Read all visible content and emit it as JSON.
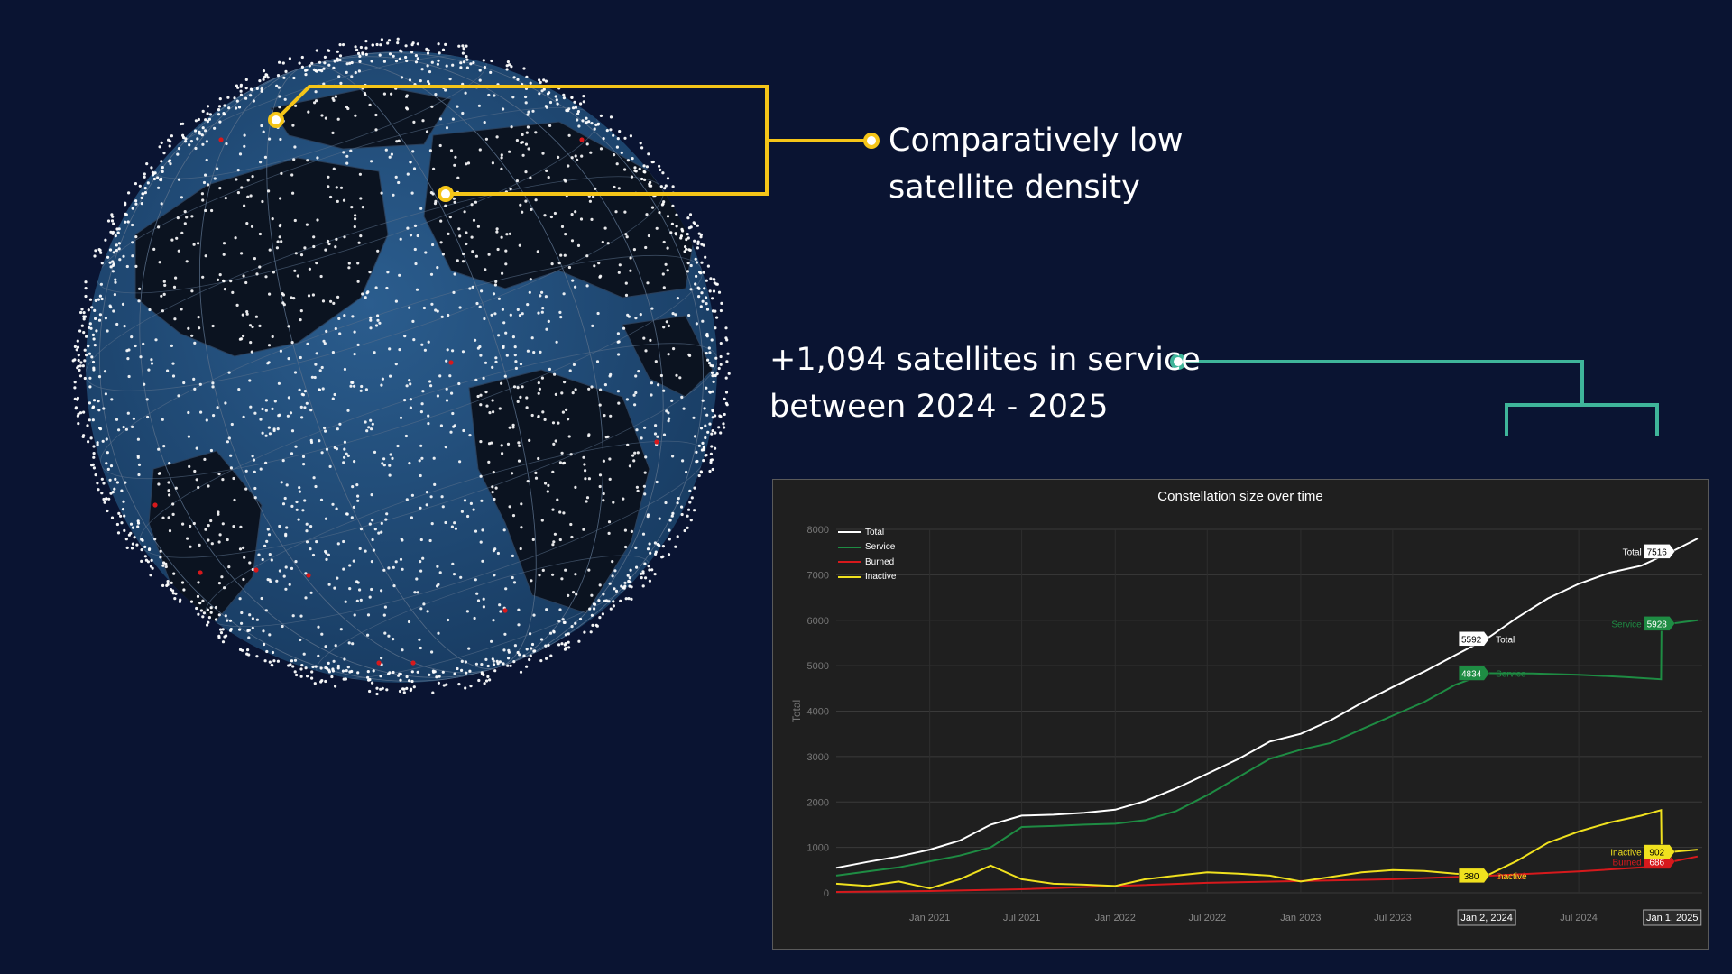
{
  "callouts": {
    "density": {
      "line1": "Comparatively low",
      "line2": "satellite density"
    },
    "service": {
      "line1": "+1,094 satellites in service",
      "line2": "between 2024 - 2025"
    }
  },
  "colors": {
    "background": "#0a1432",
    "callout_yellow": "#f5c518",
    "callout_teal": "#3fb59a",
    "ocean": "#1f4a75",
    "land": "#0b1320",
    "satellite": "#ffffff",
    "total": "#ffffff",
    "service": "#1e8c43",
    "burned": "#d7191c",
    "inactive": "#f0e11e"
  },
  "globe": {
    "icon": "earth-globe-icon",
    "satellite_icon": "satellite-dot-icon"
  },
  "chart_data": {
    "type": "line",
    "title": "Constellation size over time",
    "ylabel": "Total",
    "xlabel": "",
    "ylim": [
      0,
      8000
    ],
    "xlim": [
      "2020-07-01",
      "2025-03-01"
    ],
    "yticks": [
      0,
      1000,
      2000,
      3000,
      4000,
      5000,
      6000,
      7000,
      8000
    ],
    "xticks": [
      {
        "date": "2021-01-01",
        "label": "Jan 2021"
      },
      {
        "date": "2021-07-01",
        "label": "Jul 2021"
      },
      {
        "date": "2022-01-01",
        "label": "Jan 2022"
      },
      {
        "date": "2022-07-01",
        "label": "Jul 2022"
      },
      {
        "date": "2023-01-01",
        "label": "Jan 2023"
      },
      {
        "date": "2023-07-01",
        "label": "Jul 2023"
      },
      {
        "date": "2024-07-01",
        "label": "Jul 2024"
      }
    ],
    "highlight_xticks": [
      {
        "date": "2024-01-02",
        "label": "Jan 2, 2024"
      },
      {
        "date": "2025-01-01",
        "label": "Jan 1, 2025"
      }
    ],
    "grid": true,
    "legend": "top-left",
    "series": [
      {
        "name": "Total",
        "color": "#ffffff",
        "points": [
          [
            "2020-07-01",
            550
          ],
          [
            "2020-09-01",
            680
          ],
          [
            "2020-11-01",
            800
          ],
          [
            "2021-01-01",
            950
          ],
          [
            "2021-03-01",
            1150
          ],
          [
            "2021-05-01",
            1500
          ],
          [
            "2021-07-01",
            1700
          ],
          [
            "2021-09-01",
            1720
          ],
          [
            "2021-11-01",
            1760
          ],
          [
            "2022-01-01",
            1830
          ],
          [
            "2022-03-01",
            2020
          ],
          [
            "2022-05-01",
            2300
          ],
          [
            "2022-07-01",
            2620
          ],
          [
            "2022-09-01",
            2950
          ],
          [
            "2022-11-01",
            3330
          ],
          [
            "2023-01-01",
            3500
          ],
          [
            "2023-03-01",
            3800
          ],
          [
            "2023-05-01",
            4180
          ],
          [
            "2023-07-01",
            4530
          ],
          [
            "2023-09-01",
            4870
          ],
          [
            "2023-11-01",
            5230
          ],
          [
            "2024-01-02",
            5592
          ],
          [
            "2024-03-01",
            6050
          ],
          [
            "2024-05-01",
            6480
          ],
          [
            "2024-07-01",
            6800
          ],
          [
            "2024-09-01",
            7050
          ],
          [
            "2024-11-01",
            7200
          ],
          [
            "2025-01-01",
            7516
          ],
          [
            "2025-02-20",
            7800
          ]
        ],
        "labels": [
          {
            "date": "2024-01-02",
            "value": 5592
          },
          {
            "date": "2025-01-01",
            "value": 7516
          }
        ]
      },
      {
        "name": "Service",
        "color": "#1e8c43",
        "points": [
          [
            "2020-07-01",
            380
          ],
          [
            "2020-11-01",
            560
          ],
          [
            "2021-03-01",
            820
          ],
          [
            "2021-05-01",
            1000
          ],
          [
            "2021-07-01",
            1450
          ],
          [
            "2021-09-01",
            1470
          ],
          [
            "2021-11-01",
            1500
          ],
          [
            "2022-01-01",
            1520
          ],
          [
            "2022-03-01",
            1600
          ],
          [
            "2022-05-01",
            1800
          ],
          [
            "2022-07-01",
            2150
          ],
          [
            "2022-09-01",
            2550
          ],
          [
            "2022-11-01",
            2950
          ],
          [
            "2023-01-01",
            3150
          ],
          [
            "2023-03-01",
            3300
          ],
          [
            "2023-05-01",
            3600
          ],
          [
            "2023-07-01",
            3900
          ],
          [
            "2023-09-01",
            4200
          ],
          [
            "2023-11-01",
            4580
          ],
          [
            "2024-01-02",
            4834
          ],
          [
            "2024-04-01",
            4830
          ],
          [
            "2024-07-01",
            4800
          ],
          [
            "2024-10-01",
            4750
          ],
          [
            "2024-12-10",
            4700
          ],
          [
            "2024-12-11",
            5928
          ],
          [
            "2025-01-01",
            5928
          ],
          [
            "2025-02-20",
            6000
          ]
        ],
        "labels": [
          {
            "date": "2024-01-02",
            "value": 4834
          },
          {
            "date": "2025-01-01",
            "value": 5928
          }
        ]
      },
      {
        "name": "Burned",
        "color": "#d7191c",
        "points": [
          [
            "2020-07-01",
            20
          ],
          [
            "2021-01-01",
            40
          ],
          [
            "2021-07-01",
            80
          ],
          [
            "2022-01-01",
            150
          ],
          [
            "2022-07-01",
            220
          ],
          [
            "2023-01-01",
            260
          ],
          [
            "2023-07-01",
            300
          ],
          [
            "2024-01-02",
            376
          ],
          [
            "2024-07-01",
            470
          ],
          [
            "2024-12-01",
            580
          ],
          [
            "2025-01-01",
            686
          ],
          [
            "2025-02-20",
            800
          ]
        ],
        "labels": [
          {
            "date": "2024-01-02",
            "value": 376
          },
          {
            "date": "2025-01-01",
            "value": 686
          }
        ]
      },
      {
        "name": "Inactive",
        "color": "#f0e11e",
        "points": [
          [
            "2020-07-01",
            200
          ],
          [
            "2020-09-01",
            150
          ],
          [
            "2020-11-01",
            250
          ],
          [
            "2021-01-01",
            100
          ],
          [
            "2021-03-01",
            300
          ],
          [
            "2021-05-01",
            600
          ],
          [
            "2021-07-01",
            300
          ],
          [
            "2021-09-01",
            200
          ],
          [
            "2021-11-01",
            180
          ],
          [
            "2022-01-01",
            150
          ],
          [
            "2022-03-01",
            300
          ],
          [
            "2022-05-01",
            380
          ],
          [
            "2022-07-01",
            450
          ],
          [
            "2022-09-01",
            420
          ],
          [
            "2022-11-01",
            380
          ],
          [
            "2023-01-01",
            250
          ],
          [
            "2023-03-01",
            350
          ],
          [
            "2023-05-01",
            450
          ],
          [
            "2023-07-01",
            500
          ],
          [
            "2023-09-01",
            480
          ],
          [
            "2023-11-01",
            420
          ],
          [
            "2024-01-02",
            380
          ],
          [
            "2024-03-01",
            700
          ],
          [
            "2024-05-01",
            1100
          ],
          [
            "2024-07-01",
            1350
          ],
          [
            "2024-09-01",
            1550
          ],
          [
            "2024-11-01",
            1700
          ],
          [
            "2024-12-10",
            1820
          ],
          [
            "2024-12-11",
            1000
          ],
          [
            "2025-01-01",
            902
          ],
          [
            "2025-02-20",
            950
          ]
        ],
        "labels": [
          {
            "date": "2024-01-02",
            "value": 380
          },
          {
            "date": "2025-01-01",
            "value": 902
          }
        ]
      }
    ]
  }
}
